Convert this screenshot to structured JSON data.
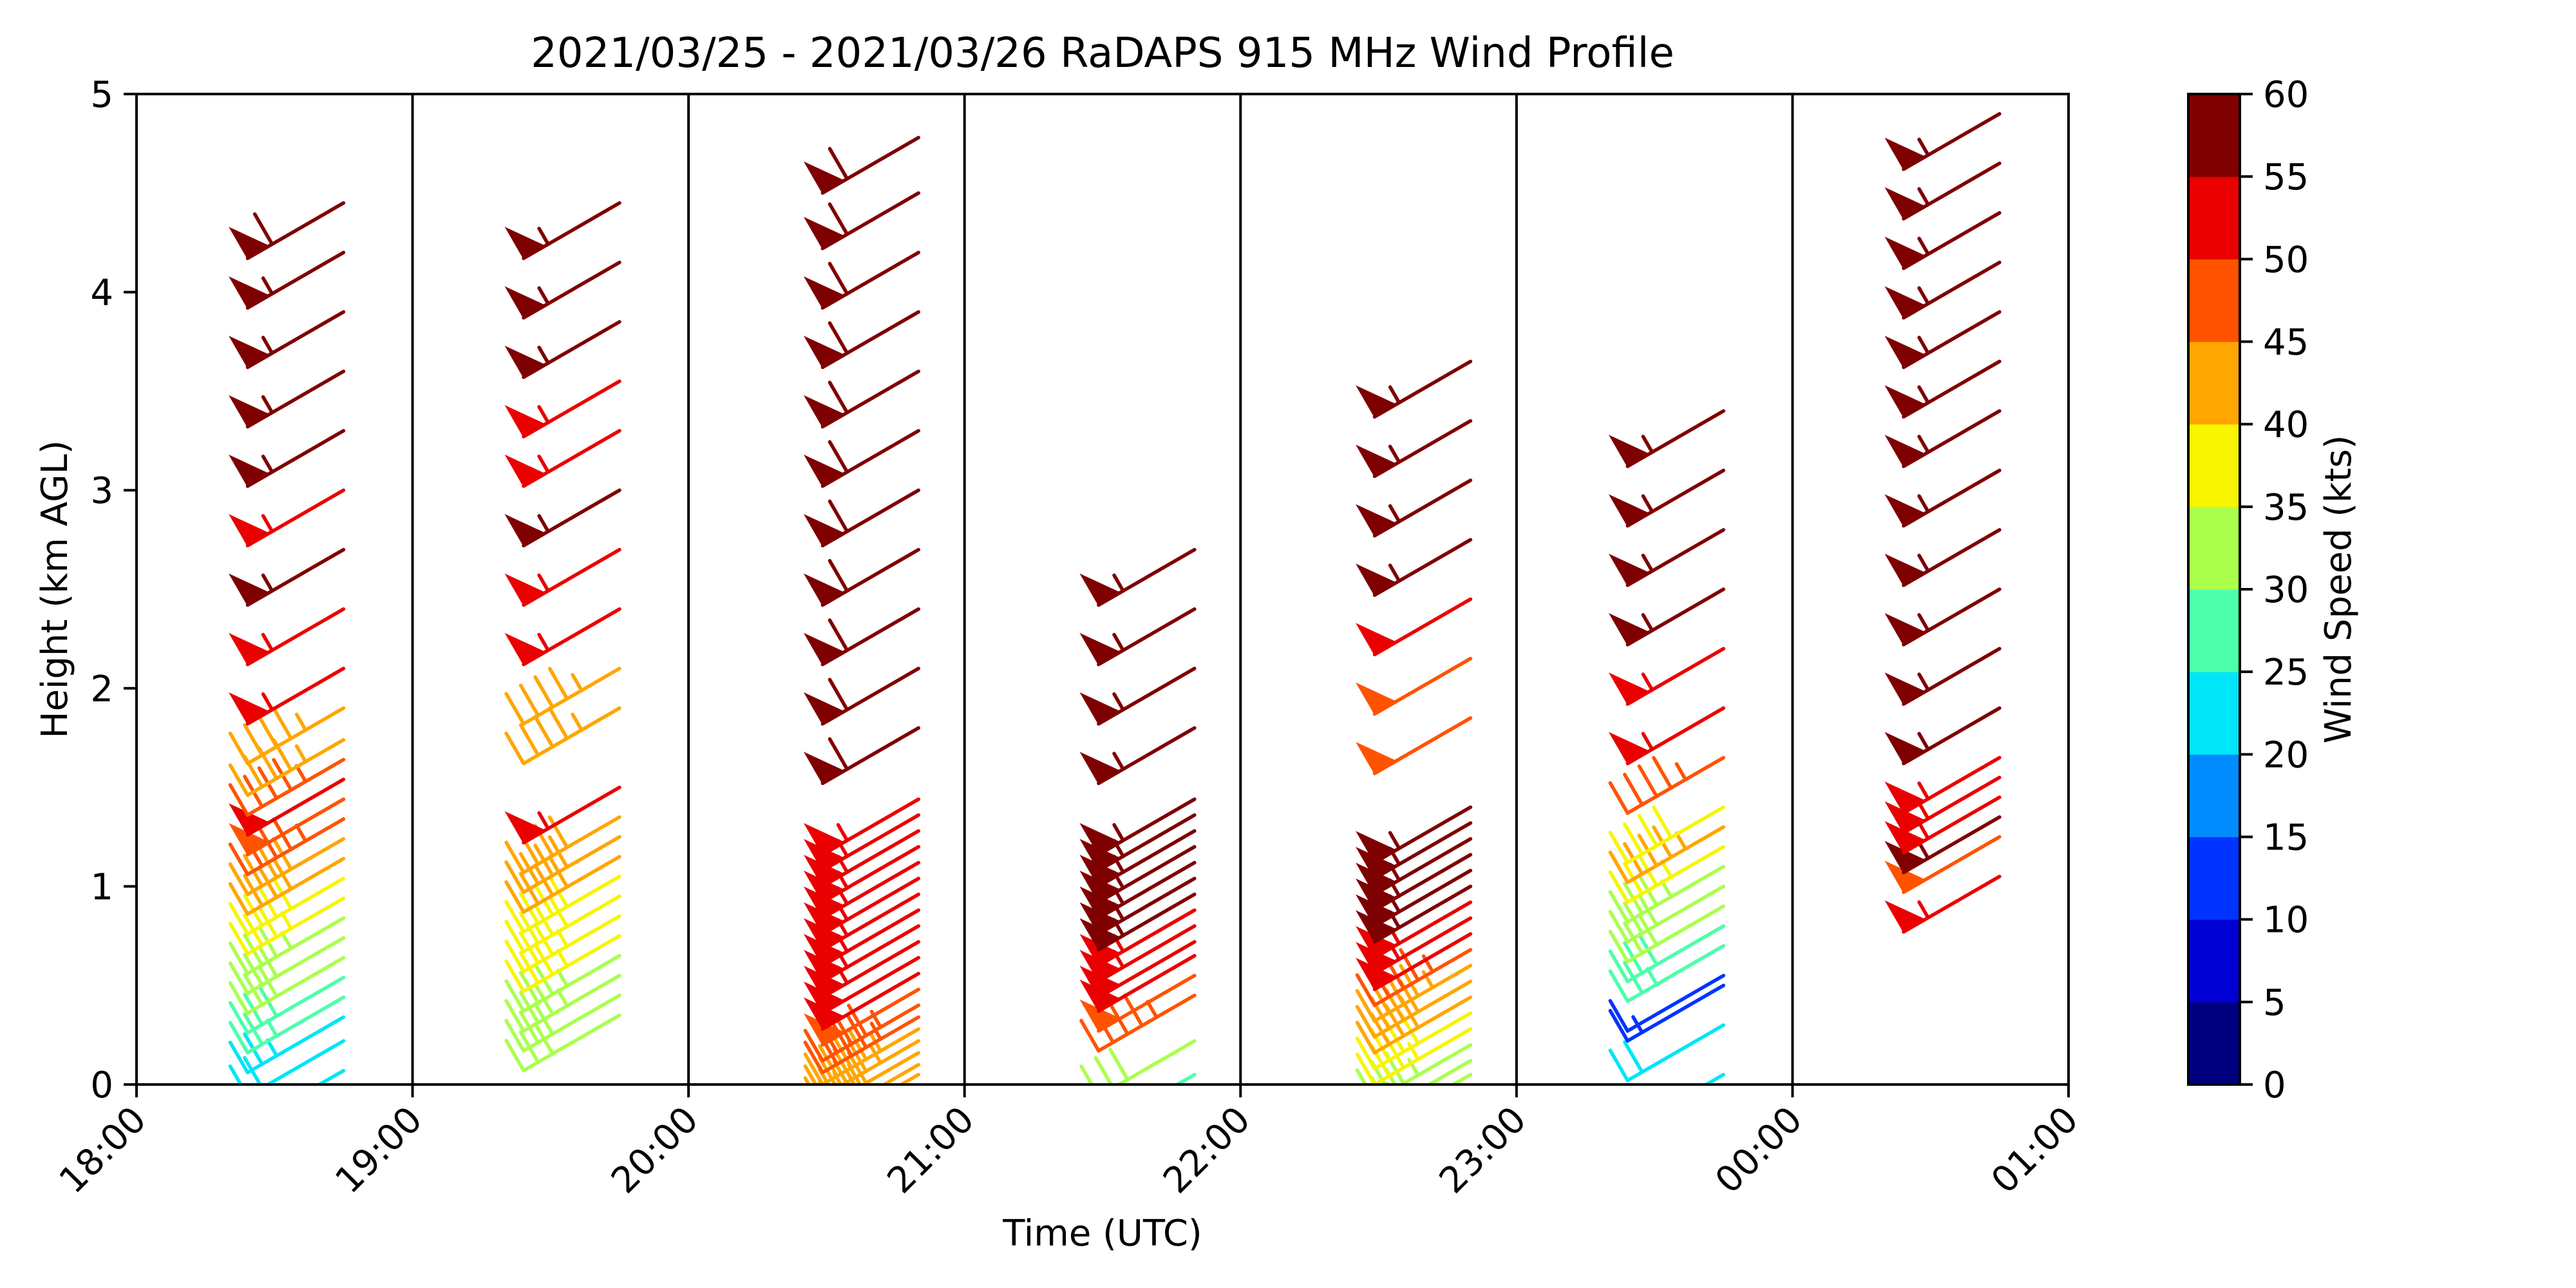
{
  "chart_data": {
    "type": "wind_barbs",
    "title": "2021/03/25 - 2021/03/26 RaDAPS 915 MHz Wind Profile",
    "xlabel": "Time (UTC)",
    "ylabel": "Height (km AGL)",
    "x_ticks": [
      "18:00",
      "19:00",
      "20:00",
      "21:00",
      "22:00",
      "23:00",
      "00:00",
      "01:00"
    ],
    "y_ticks": [
      "0",
      "1",
      "2",
      "3",
      "4",
      "5"
    ],
    "ylim": [
      0,
      5
    ],
    "colorbar": {
      "label": "Wind Speed (kts)",
      "ticks": [
        "0",
        "5",
        "10",
        "15",
        "20",
        "25",
        "30",
        "35",
        "40",
        "45",
        "50",
        "55",
        "60"
      ],
      "bounds": [
        0,
        60
      ],
      "colors": [
        "#00007f",
        "#0000d4",
        "#0033ff",
        "#008cff",
        "#00e5f7",
        "#4dffaa",
        "#aaff4d",
        "#f7f500",
        "#ffa600",
        "#ff5300",
        "#ea0000",
        "#7f0000"
      ]
    },
    "profiles": [
      {
        "time": "18:45",
        "heights_km": [
          0.07,
          0.22,
          0.34,
          0.44,
          0.54,
          0.64,
          0.74,
          0.84,
          0.94,
          1.04,
          1.14,
          1.24,
          1.34,
          1.44,
          1.54,
          1.64,
          1.74,
          1.9,
          2.1,
          2.4,
          2.7,
          3.0,
          3.3,
          3.6,
          3.9,
          4.2,
          4.45
        ],
        "speeds_kts": [
          20,
          22,
          24,
          26,
          28,
          30,
          32,
          34,
          36,
          38,
          40,
          42,
          46,
          48,
          50,
          46,
          44,
          44,
          53,
          54,
          57,
          54,
          57,
          57,
          57,
          57,
          58
        ]
      },
      {
        "time": "19:45",
        "heights_km": [
          0.35,
          0.45,
          0.55,
          0.65,
          0.75,
          0.85,
          0.95,
          1.05,
          1.15,
          1.25,
          1.35,
          1.5,
          1.9,
          2.1,
          2.4,
          2.7,
          3.0,
          3.3,
          3.55,
          3.85,
          4.15,
          4.45
        ],
        "speeds_kts": [
          32,
          32,
          34,
          34,
          36,
          36,
          38,
          38,
          40,
          40,
          42,
          53,
          43,
          43,
          53,
          53,
          57,
          53,
          53,
          57,
          57,
          57
        ]
      },
      {
        "time": "20:50",
        "heights_km": [
          0.05,
          0.1,
          0.16,
          0.22,
          0.28,
          0.34,
          0.4,
          0.48,
          0.56,
          0.64,
          0.72,
          0.8,
          0.88,
          0.96,
          1.04,
          1.12,
          1.2,
          1.28,
          1.36,
          1.44,
          1.8,
          2.1,
          2.4,
          2.7,
          3.0,
          3.3,
          3.6,
          3.9,
          4.2,
          4.5,
          4.78
        ],
        "speeds_kts": [
          40,
          42,
          42,
          44,
          44,
          45,
          46,
          48,
          50,
          52,
          53,
          53,
          54,
          54,
          54,
          54,
          54,
          54,
          54,
          54,
          58,
          58,
          58,
          58,
          58,
          58,
          58,
          58,
          58,
          58,
          58
        ]
      },
      {
        "time": "21:50",
        "heights_km": [
          0.05,
          0.22,
          0.45,
          0.55,
          0.65,
          0.72,
          0.8,
          0.88,
          0.96,
          1.04,
          1.12,
          1.2,
          1.28,
          1.36,
          1.44,
          1.8,
          2.1,
          2.4,
          2.7
        ],
        "speeds_kts": [
          25,
          32,
          46,
          48,
          50,
          52,
          53,
          54,
          56,
          57,
          57,
          57,
          57,
          57,
          57,
          57,
          57,
          57,
          57
        ]
      },
      {
        "time": "22:50",
        "heights_km": [
          0.05,
          0.12,
          0.2,
          0.28,
          0.36,
          0.44,
          0.52,
          0.6,
          0.68,
          0.76,
          0.84,
          0.92,
          1.0,
          1.08,
          1.16,
          1.24,
          1.32,
          1.4,
          1.85,
          2.15,
          2.45,
          2.75,
          3.05,
          3.35,
          3.65
        ],
        "speeds_kts": [
          30,
          32,
          34,
          36,
          38,
          40,
          42,
          44,
          46,
          50,
          53,
          54,
          56,
          57,
          57,
          57,
          57,
          57,
          48,
          48,
          50,
          57,
          57,
          57,
          57
        ]
      },
      {
        "time": "23:45",
        "heights_km": [
          0.05,
          0.3,
          0.5,
          0.55,
          0.7,
          0.8,
          0.9,
          1.0,
          1.1,
          1.2,
          1.3,
          1.4,
          1.65,
          1.9,
          2.2,
          2.5,
          2.8,
          3.1,
          3.4
        ],
        "speeds_kts": [
          24,
          22,
          14,
          12,
          26,
          28,
          30,
          32,
          34,
          36,
          44,
          38,
          46,
          53,
          53,
          57,
          57,
          57,
          57
        ]
      },
      {
        "time": "00:45",
        "heights_km": [
          1.05,
          1.25,
          1.35,
          1.45,
          1.55,
          1.65,
          1.9,
          2.2,
          2.5,
          2.8,
          3.1,
          3.4,
          3.65,
          3.9,
          4.15,
          4.4,
          4.65,
          4.9
        ],
        "speeds_kts": [
          53,
          48,
          57,
          53,
          53,
          53,
          57,
          57,
          57,
          57,
          57,
          57,
          57,
          57,
          57,
          57,
          57,
          57
        ]
      }
    ]
  }
}
